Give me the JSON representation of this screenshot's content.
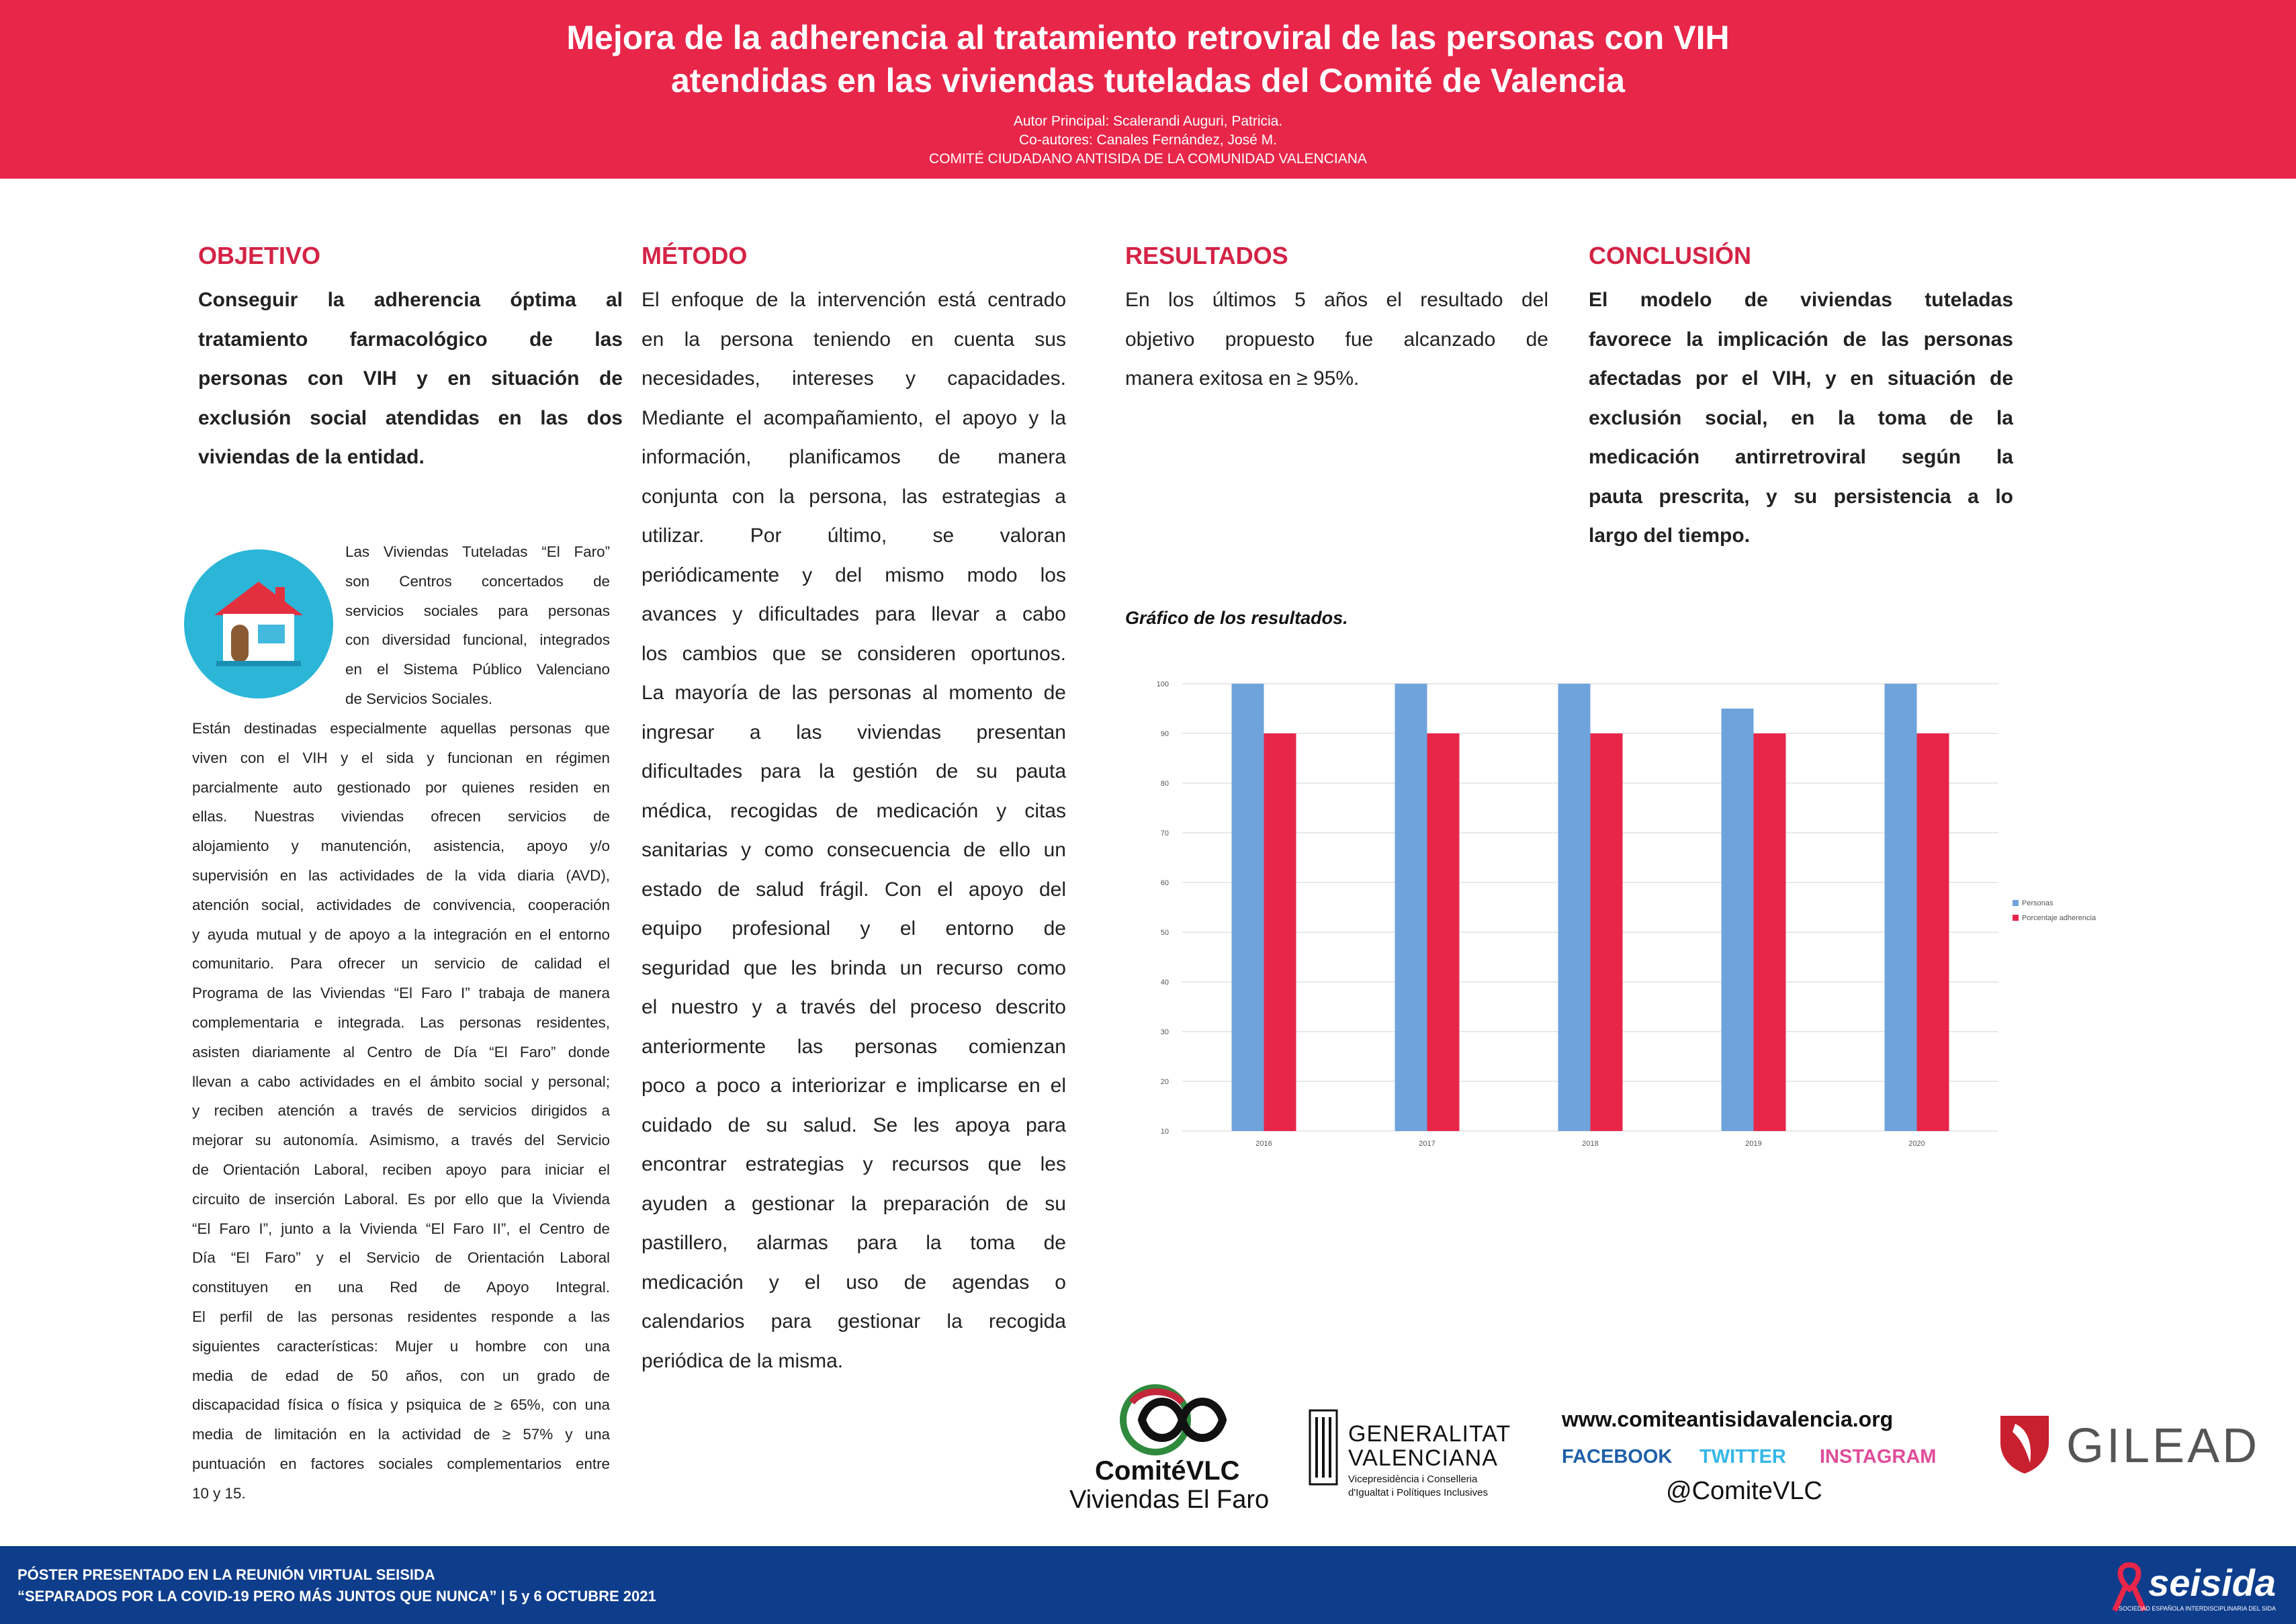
{
  "header": {
    "title_line1": "Mejora de la adherencia al tratamiento retroviral de las personas con VIH",
    "title_line2": "atendidas en las viviendas tuteladas del Comité de Valencia",
    "author": "Autor Principal: Scalerandi Auguri, Patricia.",
    "coauthors": "Co-autores: Canales Fernández, José M.",
    "org": "COMITÉ CIUDADANO ANTISIDA DE LA COMUNIDAD VALENCIANA"
  },
  "objetivo": {
    "title": "OBJETIVO",
    "lines": [
      "Conseguir la adherencia óptima al",
      "tratamiento farmacológico de las",
      "personas con VIH y en situación de",
      "exclusión social atendidas en las dos",
      "viviendas de la entidad."
    ],
    "side_lines": [
      "Las Viviendas Tuteladas “El Faro”",
      "son Centros concertados de",
      "servicios sociales para personas",
      "con diversidad funcional, integrados",
      "en el Sistema Público Valenciano",
      "de Servicios Sociales."
    ],
    "body_lines": [
      "Están destinadas especialmente aquellas personas que",
      "viven con el VIH y el sida y funcionan en régimen",
      "parcialmente auto gestionado por quienes residen en",
      "ellas. Nuestras viviendas ofrecen servicios de",
      "alojamiento y manutención, asistencia, apoyo y/o",
      "supervisión en las actividades de la vida diaria (AVD),",
      "atención social, actividades de convivencia, cooperación",
      "y ayuda mutual y de apoyo a la integración en el entorno",
      "comunitario. Para ofrecer un servicio de calidad el",
      "Programa de las Viviendas “El Faro I” trabaja de manera",
      "complementaria e integrada. Las personas residentes,",
      "asisten diariamente al Centro de Día “El Faro” donde",
      "llevan a cabo actividades en el ámbito social y personal;",
      "y reciben atención a través de servicios dirigidos a",
      "mejorar su autonomía. Asimismo, a través del Servicio",
      "de Orientación Laboral, reciben apoyo para iniciar el",
      "circuito de inserción Laboral. Es por ello que la Vivienda",
      "“El Faro I”, junto a la Vivienda “El Faro II”, el Centro de",
      "Día “El Faro” y el Servicio de Orientación Laboral",
      "constituyen en una Red de Apoyo Integral.",
      "El perfil de las personas residentes responde a las",
      "siguientes características: Mujer u hombre con una",
      "media de edad de 50 años, con un grado de",
      "discapacidad física o física y psiquica de ≥ 65%, con una",
      "media de limitación en la actividad de ≥ 57% y una",
      "puntuación en factores sociales complementarios entre",
      "10 y 15."
    ]
  },
  "metodo": {
    "title": "MÉTODO",
    "lines": [
      "El enfoque de la intervención está centrado",
      "en la persona teniendo en cuenta sus",
      "necesidades, intereses y capacidades.",
      "Mediante el acompañamiento, el apoyo y la",
      "información, planificamos de manera",
      "conjunta con la persona, las estrategias a",
      "utilizar. Por último, se valoran",
      "periódicamente y del mismo modo los",
      "avances y dificultades para llevar a cabo",
      "los cambios que se consideren oportunos.",
      "La mayoría de las personas al momento de",
      "ingresar a las viviendas presentan",
      "dificultades para la gestión de su pauta",
      "médica, recogidas de medicación y citas",
      "sanitarias y como consecuencia de ello un",
      "estado de salud frágil. Con el apoyo del",
      "equipo profesional y el entorno de",
      "seguridad que les brinda un recurso como",
      "el nuestro y a través del proceso descrito",
      "anteriormente las personas comienzan",
      "poco a poco a interiorizar e implicarse en el",
      "cuidado de su salud. Se les apoya para",
      "encontrar estrategias y recursos que les",
      "ayuden a gestionar la preparación de su",
      "pastillero, alarmas para la toma de",
      "medicación y el uso de agendas o",
      "calendarios para gestionar la recogida",
      "periódica de la misma."
    ]
  },
  "resultados": {
    "title": "RESULTADOS",
    "lines": [
      "En los últimos 5 años el resultado del",
      "objetivo propuesto fue alcanzado de",
      "manera exitosa en ≥ 95%."
    ],
    "chart_caption": "Gráfico de los resultados."
  },
  "conclusion": {
    "title": "CONCLUSIÓN",
    "lines": [
      "El modelo de viviendas tuteladas",
      "favorece la implicación de las personas",
      "afectadas por el VIH, y en situación de",
      "exclusión social, en la toma de la",
      "medicación antirretroviral según la",
      "pauta prescrita, y su persistencia a lo",
      "largo del tiempo."
    ]
  },
  "chart_data": {
    "type": "bar",
    "categories": [
      "2016",
      "2017",
      "2018",
      "2019",
      "2020"
    ],
    "series": [
      {
        "name": "Personas",
        "values": [
          100,
          100,
          100,
          95,
          100
        ],
        "color": "#6fa3dc"
      },
      {
        "name": "Porcentaje adherencia",
        "values": [
          90,
          90,
          90,
          90,
          90
        ],
        "color": "#e8264a"
      }
    ],
    "y_ticks": [
      "100",
      "90",
      "80",
      "70",
      "60",
      "50",
      "40",
      "30",
      "20",
      "10"
    ],
    "ylim": [
      10,
      100
    ],
    "grid": true,
    "legend": "right"
  },
  "logos": {
    "comite_name": "ComitéVLC",
    "comite_sub": "Viviendas El Faro",
    "gva_line1": "GENERALITAT",
    "gva_line2": "VALENCIANA",
    "gva_sub1": "Vicepresidència i Conselleria",
    "gva_sub2": "d'Igualtat i Polítiques Inclusives",
    "web": "www.comiteantisidavalencia.org",
    "facebook": "FACEBOOK",
    "twitter": "TWITTER",
    "instagram": "INSTAGRAM",
    "handle": "@ComiteVLC",
    "gilead": "GILEAD"
  },
  "footer": {
    "line1": "PÓSTER PRESENTADO EN LA REUNIÓN VIRTUAL SEISIDA",
    "line2": "“SEPARADOS POR LA COVID-19 PERO MÁS JUNTOS QUE NUNCA” | 5 y 6 OCTUBRE 2021",
    "seisida": "seisida",
    "seisida_sub": "SOCIEDAD ESPAÑOLA INTERDISCIPLINARIA DEL SIDA"
  },
  "colors": {
    "accent": "#e8264a",
    "footer": "#0e3d8c",
    "icon_bg": "#2bb6d8"
  }
}
